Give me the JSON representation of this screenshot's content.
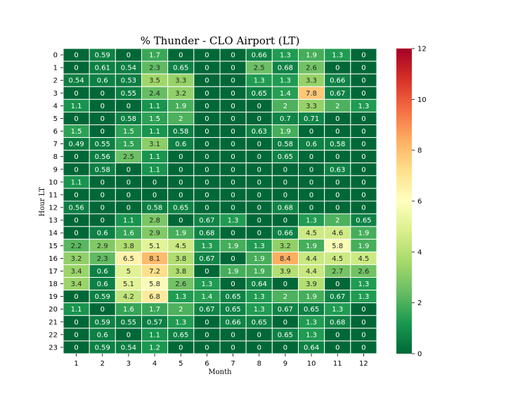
{
  "chart_data": {
    "type": "heatmap",
    "title": "% Thunder - CLO Airport (LT)",
    "xlabel": "Month",
    "ylabel": "Hour LT",
    "x_categories": [
      "1",
      "2",
      "3",
      "4",
      "5",
      "6",
      "7",
      "8",
      "9",
      "10",
      "11",
      "12"
    ],
    "y_categories": [
      "0",
      "1",
      "2",
      "3",
      "4",
      "5",
      "6",
      "7",
      "8",
      "9",
      "10",
      "11",
      "12",
      "13",
      "14",
      "15",
      "16",
      "17",
      "18",
      "19",
      "20",
      "21",
      "22",
      "23"
    ],
    "values": [
      [
        0,
        0.59,
        0,
        1.7,
        0,
        0,
        0,
        0.66,
        1.3,
        1.9,
        1.3,
        0
      ],
      [
        0,
        0.61,
        0.54,
        2.3,
        0.65,
        0,
        0,
        2.5,
        0.68,
        2.6,
        0,
        0
      ],
      [
        0.54,
        0.6,
        0.53,
        3.5,
        3.3,
        0,
        0,
        1.3,
        1.3,
        3.3,
        0.66,
        0
      ],
      [
        0,
        0,
        0.55,
        2.4,
        3.2,
        0,
        0,
        0.65,
        1.4,
        7.8,
        0.67,
        0
      ],
      [
        1.1,
        0,
        0,
        1.1,
        1.9,
        0,
        0,
        0,
        2,
        3.3,
        2,
        1.3
      ],
      [
        0,
        0,
        0.58,
        1.5,
        2,
        0,
        0,
        0,
        0.7,
        0.71,
        0,
        0
      ],
      [
        1.5,
        0,
        1.5,
        1.1,
        0.58,
        0,
        0,
        0.63,
        1.9,
        0,
        0,
        0
      ],
      [
        0.49,
        0.55,
        1.5,
        3.1,
        0.6,
        0,
        0,
        0,
        0.58,
        0.6,
        0.58,
        0
      ],
      [
        0,
        0.56,
        2.5,
        1.1,
        0,
        0,
        0,
        0,
        0.65,
        0,
        0,
        0
      ],
      [
        0,
        0.58,
        0,
        1.1,
        0,
        0,
        0,
        0,
        0,
        0,
        0.63,
        0
      ],
      [
        1.1,
        0,
        0,
        0,
        0,
        0,
        0,
        0,
        0,
        0,
        0,
        0
      ],
      [
        0,
        0,
        0,
        0,
        0,
        0,
        0,
        0,
        0,
        0,
        0,
        0
      ],
      [
        0.56,
        0,
        0,
        0.58,
        0.65,
        0,
        0,
        0,
        0.68,
        0,
        0,
        0
      ],
      [
        0,
        0,
        1.1,
        2.8,
        0,
        0.67,
        1.3,
        0,
        0,
        1.3,
        2,
        0.65
      ],
      [
        0,
        0.6,
        1.6,
        2.9,
        1.9,
        0.68,
        0,
        0,
        0.66,
        4.5,
        4.6,
        1.9
      ],
      [
        2.2,
        2.9,
        3.8,
        5.1,
        4.5,
        1.3,
        1.9,
        1.3,
        3.2,
        1.9,
        5.8,
        1.9
      ],
      [
        3.2,
        2.3,
        6.5,
        8.1,
        3.8,
        0.67,
        0,
        1.9,
        8.4,
        4.4,
        4.5,
        4.5
      ],
      [
        3.4,
        0.6,
        5,
        7.2,
        3.8,
        0,
        1.9,
        1.9,
        3.9,
        4.4,
        2.7,
        2.6
      ],
      [
        3.4,
        0.6,
        5.1,
        5.8,
        2.6,
        1.3,
        0,
        0.64,
        0,
        3.9,
        0,
        1.3
      ],
      [
        0,
        0.59,
        4.2,
        6.8,
        1.3,
        1.4,
        0.65,
        1.3,
        2,
        1.9,
        0.67,
        1.3
      ],
      [
        1.1,
        0,
        1.6,
        1.7,
        2,
        0.67,
        0.65,
        1.3,
        0.67,
        0.65,
        1.3,
        0
      ],
      [
        0,
        0.59,
        0.55,
        0.57,
        1.3,
        0,
        0.66,
        0.65,
        0,
        1.3,
        0.68,
        0
      ],
      [
        0,
        0.6,
        0,
        1.1,
        0.65,
        0,
        0,
        0,
        0.65,
        1.3,
        0,
        0
      ],
      [
        0,
        0.59,
        0.54,
        1.2,
        0,
        0,
        0,
        0,
        0,
        0.64,
        0,
        0
      ]
    ],
    "colorbar": {
      "min": 0,
      "max": 12,
      "ticks": [
        "0",
        "2",
        "4",
        "6",
        "8",
        "10",
        "12"
      ],
      "colormap": "RdYlGn_r"
    },
    "annotations": true,
    "grid": false
  }
}
